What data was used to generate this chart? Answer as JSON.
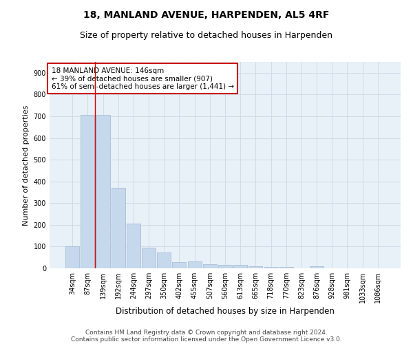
{
  "title": "18, MANLAND AVENUE, HARPENDEN, AL5 4RF",
  "subtitle": "Size of property relative to detached houses in Harpenden",
  "xlabel": "Distribution of detached houses by size in Harpenden",
  "ylabel": "Number of detached properties",
  "categories": [
    "34sqm",
    "87sqm",
    "139sqm",
    "192sqm",
    "244sqm",
    "297sqm",
    "350sqm",
    "402sqm",
    "455sqm",
    "507sqm",
    "560sqm",
    "613sqm",
    "665sqm",
    "718sqm",
    "770sqm",
    "823sqm",
    "876sqm",
    "928sqm",
    "981sqm",
    "1033sqm",
    "1086sqm"
  ],
  "values": [
    101,
    707,
    707,
    370,
    205,
    95,
    72,
    28,
    32,
    18,
    17,
    17,
    8,
    6,
    6,
    0,
    9,
    0,
    0,
    0,
    0
  ],
  "bar_color": "#c5d8ec",
  "bar_edgecolor": "#a0b8d0",
  "grid_color": "#cdd9e5",
  "background_color": "#e8f0f8",
  "annotation_box_text": "18 MANLAND AVENUE: 146sqm\n← 39% of detached houses are smaller (907)\n61% of semi-detached houses are larger (1,441) →",
  "annotation_box_color": "#ffffff",
  "annotation_box_edgecolor": "#cc0000",
  "vline_x_index": 2,
  "vline_color": "#cc0000",
  "ylim": [
    0,
    950
  ],
  "yticks": [
    0,
    100,
    200,
    300,
    400,
    500,
    600,
    700,
    800,
    900
  ],
  "footnote_line1": "Contains HM Land Registry data © Crown copyright and database right 2024.",
  "footnote_line2": "Contains public sector information licensed under the Open Government Licence v3.0.",
  "title_fontsize": 10,
  "subtitle_fontsize": 9,
  "xlabel_fontsize": 8.5,
  "ylabel_fontsize": 8,
  "tick_fontsize": 7,
  "annotation_fontsize": 7.5,
  "footnote_fontsize": 6.5
}
